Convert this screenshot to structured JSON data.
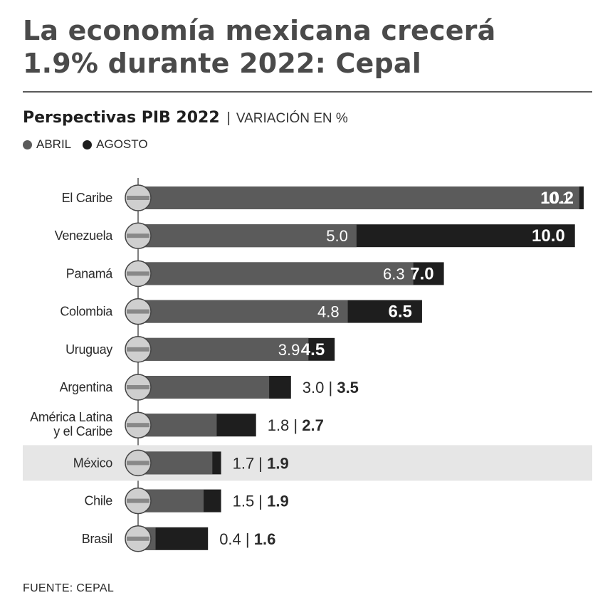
{
  "header": {
    "title_line1": "La economía mexicana crecerá",
    "title_line2": "1.9% durante 2022: Cepal",
    "subtitle": "Perspectivas PIB 2022",
    "separator": "|",
    "unit": "VARIACIÓN EN %"
  },
  "legend": [
    {
      "label": "ABRIL",
      "color": "#5b5b5b"
    },
    {
      "label": "AGOSTO",
      "color": "#1e1e1e"
    }
  ],
  "footer": {
    "source": "FUENTE: CEPAL"
  },
  "colors": {
    "abril": "#5b5b5b",
    "agosto": "#1e1e1e",
    "highlight": "#e6e6e6"
  },
  "chart_data": {
    "type": "bar",
    "orientation": "horizontal",
    "highlight_category": "México",
    "categories": [
      {
        "label": "El Caribe",
        "flag": "caribbean-map-icon"
      },
      {
        "label": "Venezuela",
        "flag": "venezuela-flag-icon"
      },
      {
        "label": "Panamá",
        "flag": "panama-flag-icon"
      },
      {
        "label": "Colombia",
        "flag": "colombia-flag-icon"
      },
      {
        "label": "Uruguay",
        "flag": "uruguay-flag-icon"
      },
      {
        "label": "Argentina",
        "flag": "argentina-flag-icon"
      },
      {
        "label": "América Latina\ny el Caribe",
        "flag": "latin-america-map-icon"
      },
      {
        "label": "México",
        "flag": "mexico-flag-icon"
      },
      {
        "label": "Chile",
        "flag": "chile-flag-icon"
      },
      {
        "label": "Brasil",
        "flag": "brazil-flag-icon"
      }
    ],
    "series": [
      {
        "name": "ABRIL",
        "values": [
          10.1,
          5.0,
          6.3,
          4.8,
          3.9,
          3.0,
          1.8,
          1.7,
          1.5,
          0.4
        ],
        "labels": [
          "10.1",
          "5.0",
          "6.3",
          "4.8",
          "3.9",
          "3.0",
          "1.8",
          "1.7",
          "1.5",
          "0.4"
        ]
      },
      {
        "name": "AGOSTO",
        "values": [
          10.2,
          10.0,
          7.0,
          6.5,
          4.5,
          3.5,
          2.7,
          1.9,
          1.9,
          1.6
        ],
        "labels": [
          "10.2",
          "10.0",
          "7.0",
          "6.5",
          "4.5",
          "3.5",
          "2.7",
          "1.9",
          "1.9",
          "1.6"
        ]
      }
    ],
    "xlim": [
      0,
      10.2
    ]
  }
}
